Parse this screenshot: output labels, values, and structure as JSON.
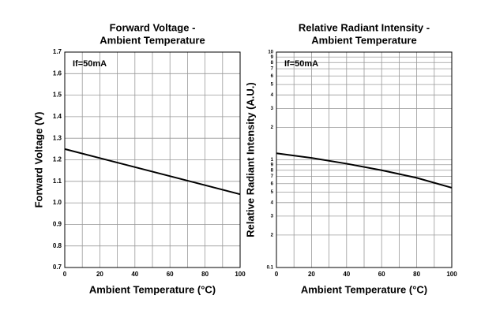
{
  "chart_data": [
    {
      "type": "line",
      "title": [
        "Forward Voltage -",
        "Ambient Temperature"
      ],
      "annotation": "If=50mA",
      "xlabel": "Ambient Temperature (°C)",
      "ylabel": "Forward Voltage (V)",
      "x": [
        0,
        100
      ],
      "series": [
        {
          "name": "If=50mA",
          "color": "#000000",
          "values": [
            1.25,
            1.04
          ]
        }
      ],
      "xlim": [
        0,
        100
      ],
      "xticks": [
        0,
        20,
        40,
        60,
        80,
        100
      ],
      "xminor": [
        10,
        30,
        50,
        70,
        90
      ],
      "ylim": [
        0.7,
        1.7
      ],
      "yticks": [
        0.7,
        0.8,
        0.9,
        {
          "value": 1,
          "label": "1.0"
        },
        1.1,
        1.2,
        1.3,
        1.4,
        1.5,
        1.6,
        1.7
      ],
      "log": false,
      "grid": true
    },
    {
      "type": "line",
      "title": [
        "Relative Radiant Intensity -",
        "Ambient Temperature"
      ],
      "annotation": "If=50mA",
      "xlabel": "Ambient Temperature (°C)",
      "ylabel": "Relative Radiant Intensity (A.U.)",
      "x": [
        0,
        20,
        40,
        60,
        80,
        100
      ],
      "series": [
        {
          "name": "If=50mA",
          "color": "#000000",
          "values": [
            1.15,
            1.04,
            0.92,
            0.8,
            0.68,
            0.55
          ]
        }
      ],
      "xlim": [
        0,
        100
      ],
      "xticks": [
        0,
        20,
        40,
        60,
        80,
        100
      ],
      "xminor": [
        10,
        30,
        50,
        70,
        90
      ],
      "ylim": [
        0.1,
        10
      ],
      "yticks": [
        0.1,
        {
          "value": 0.2,
          "label": "2"
        },
        {
          "value": 0.3,
          "label": "3"
        },
        {
          "value": 0.4,
          "label": "4"
        },
        {
          "value": 0.5,
          "label": "5"
        },
        {
          "value": 0.6,
          "label": "6"
        },
        {
          "value": 0.7,
          "label": "7"
        },
        {
          "value": 0.8,
          "label": "8"
        },
        {
          "value": 0.9,
          "label": "9"
        },
        1,
        2,
        3,
        4,
        5,
        6,
        7,
        8,
        9,
        10
      ],
      "log": true,
      "grid": true
    }
  ]
}
